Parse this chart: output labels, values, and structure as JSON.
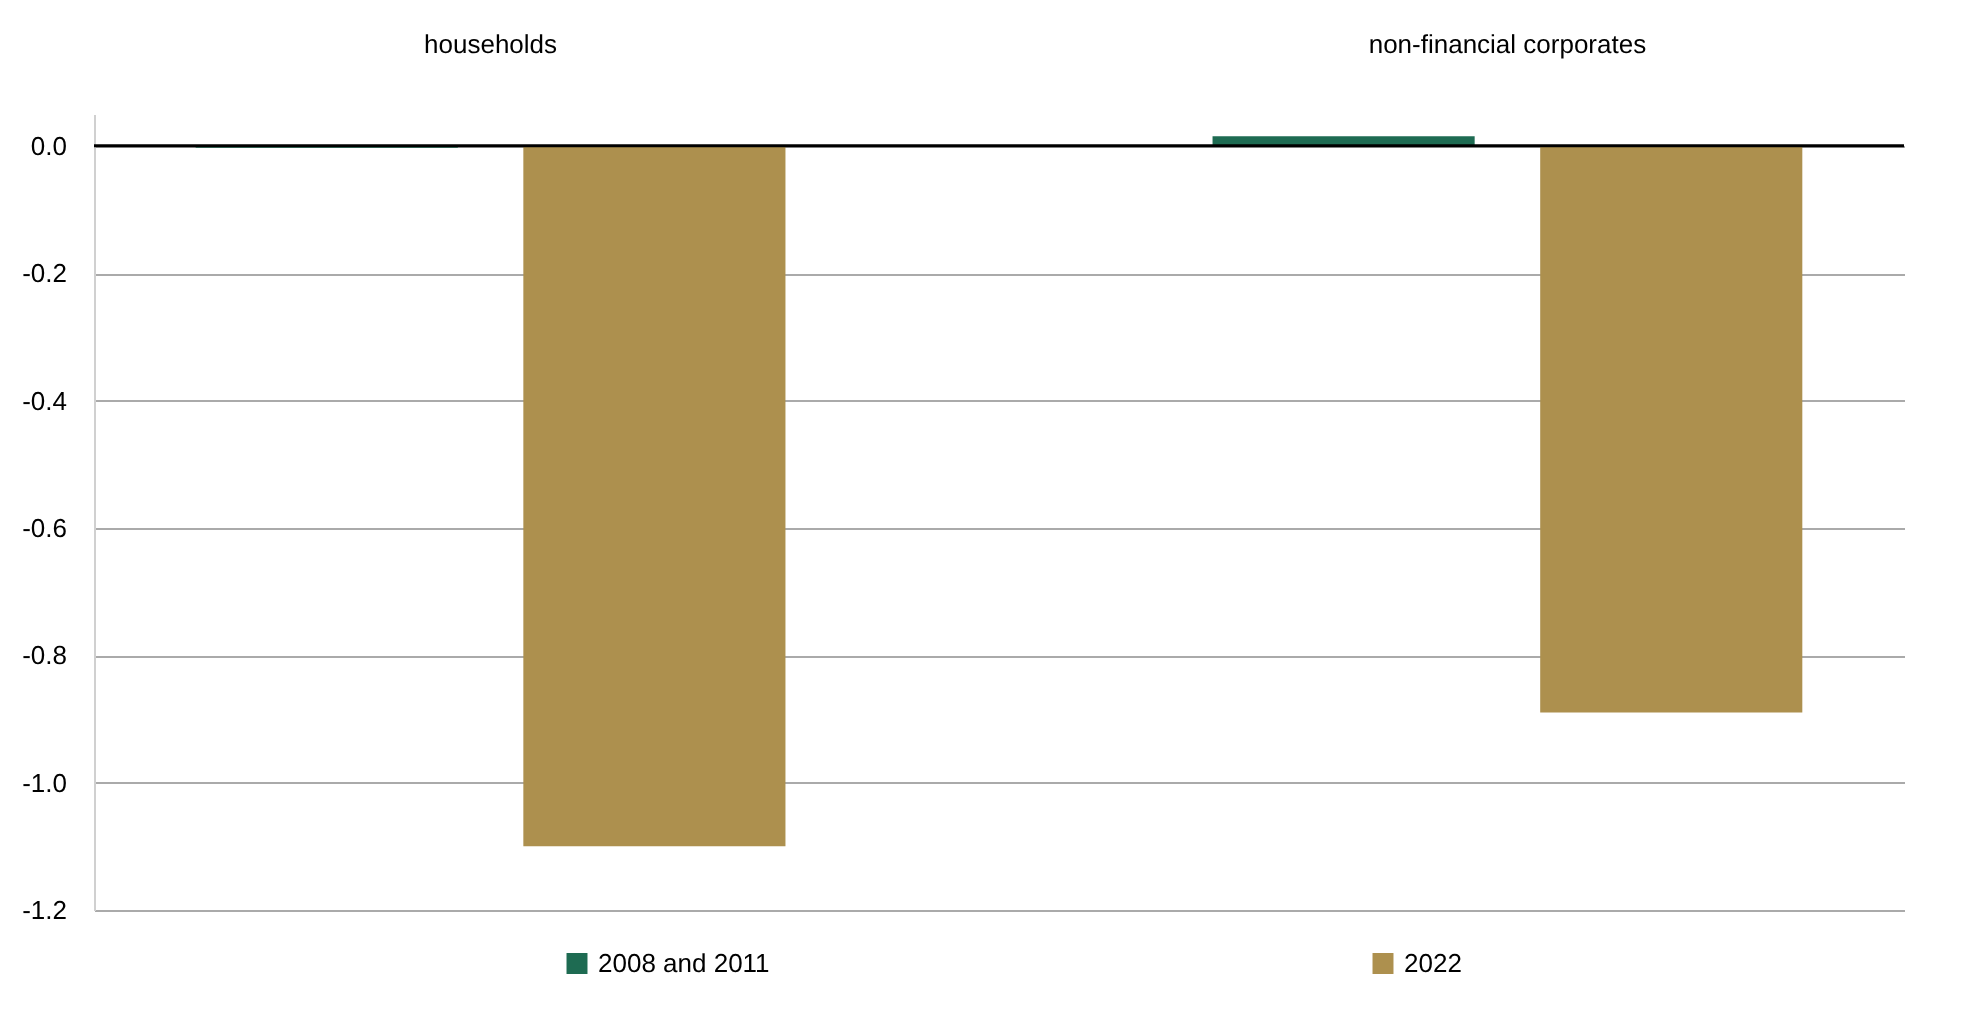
{
  "chart_data": {
    "type": "bar",
    "categories": [
      "households",
      "non-financial corporates"
    ],
    "series": [
      {
        "name": "2008 and 2011",
        "color": "#1e6b52",
        "values": [
          -0.003,
          0.015
        ]
      },
      {
        "name": "2022",
        "color": "#ad904e",
        "values": [
          -1.1,
          -0.89
        ]
      }
    ],
    "ylim": [
      -1.2,
      0.05
    ],
    "yticks": [
      {
        "value": 0,
        "label": "0.0"
      },
      {
        "value": -0.2,
        "label": "-0.2"
      },
      {
        "value": -0.4,
        "label": "-0.4"
      },
      {
        "value": -0.6,
        "label": "-0.6"
      },
      {
        "value": -0.8,
        "label": "-0.8"
      },
      {
        "value": -1.0,
        "label": "-1.0"
      },
      {
        "value": -1.2,
        "label": "-1.2"
      }
    ],
    "ref_lines": [
      {
        "axis": "y",
        "value": 0,
        "color": "#000000"
      }
    ],
    "grid": "y",
    "legend": "bottom"
  }
}
